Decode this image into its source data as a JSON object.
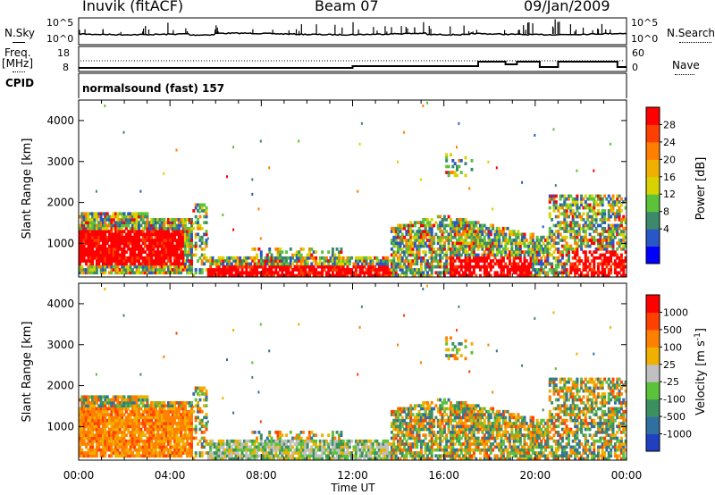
{
  "header": {
    "station": "Inuvik (fitACF)",
    "beam": "Beam 07",
    "date": "09/Jan/2009"
  },
  "panels": {
    "nsky": {
      "label": "N.Sky",
      "ticks_left": [
        "10^5",
        "10^0"
      ],
      "ticks_right": [
        "10^5",
        "10^0"
      ],
      "right_label": "N.Search"
    },
    "freq": {
      "label_top": "Freq.",
      "label_bottom": "[MHz]",
      "ticks_left": [
        "18",
        "8"
      ],
      "ticks_right": [
        "60",
        "0"
      ],
      "right_label": "Nave"
    },
    "cpid": {
      "label": "CPID",
      "text": "normalsound (fast) 157"
    }
  },
  "chart_data": [
    {
      "type": "heatmap",
      "name": "power",
      "ylabel": "Slant Range [km]",
      "yticks": [
        "4000",
        "3000",
        "2000",
        "1000"
      ],
      "ylim": [
        180,
        4500
      ],
      "xlim_hours": [
        0,
        24
      ],
      "colorbar": {
        "label": "Power [dB]",
        "ticks": [
          "28",
          "24",
          "20",
          "16",
          "12",
          "8",
          "4"
        ],
        "colors": [
          "#0000ff",
          "#2a57c7",
          "#3d8a6a",
          "#5cc23a",
          "#d8d300",
          "#f0b000",
          "#ff8000",
          "#ff4000",
          "#ff0000"
        ]
      },
      "features": [
        {
          "from": 0.0,
          "to": 4.9,
          "range_km": [
            250,
            1800
          ],
          "level": "high"
        },
        {
          "from": 5.5,
          "to": 13.6,
          "range_km": [
            200,
            650
          ],
          "level": "high"
        },
        {
          "from": 13.6,
          "to": 20.5,
          "range_km": [
            250,
            1700
          ],
          "level": "mixed"
        },
        {
          "from": 20.5,
          "to": 24.0,
          "range_km": [
            250,
            2200
          ],
          "level": "mixed"
        }
      ]
    },
    {
      "type": "heatmap",
      "name": "velocity",
      "ylabel": "Slant Range [km]",
      "yticks": [
        "4000",
        "3000",
        "2000",
        "1000"
      ],
      "ylim": [
        180,
        4500
      ],
      "xlim_hours": [
        0,
        24
      ],
      "xticks": [
        "00:00",
        "04:00",
        "08:00",
        "12:00",
        "16:00",
        "20:00",
        "00:00"
      ],
      "xlabel": "Time UT",
      "colorbar": {
        "label": "Velocity [m s",
        "label_sup": "-1",
        "label_end": "]",
        "ticks": [
          "1000",
          "500",
          "100",
          "25",
          "-25",
          "-100",
          "-500",
          "-1000"
        ],
        "colors": [
          "#2040c0",
          "#3070a0",
          "#3c9060",
          "#5cc23a",
          "#c0c0c0",
          "#f0b000",
          "#ff8000",
          "#ff4000",
          "#ff0000"
        ]
      }
    }
  ]
}
